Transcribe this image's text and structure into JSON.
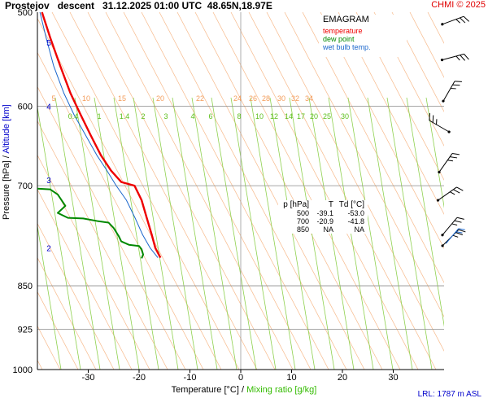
{
  "header": {
    "title": "Prostejov   descent   31.12.2025 01:00 UTC  48.65N,18.97E",
    "credit": "CHMI © 2025",
    "lrl": "LRL: 1787 m ASL"
  },
  "legend": {
    "title": "EMAGRAM",
    "items": [
      {
        "label": "temperature",
        "color": "#ee0000"
      },
      {
        "label": "dew point",
        "color": "#008800"
      },
      {
        "label": "wet bulb temp.",
        "color": "#1a66cc"
      }
    ]
  },
  "table": {
    "headers": [
      "p [hPa]",
      "T",
      "Td [°C]"
    ],
    "rows": [
      [
        "500",
        "-39.1",
        "-53.0"
      ],
      [
        "700",
        "-20.9",
        "-41.8"
      ],
      [
        "850",
        "NA",
        "NA"
      ]
    ]
  },
  "axes": {
    "xlabel_prefix": "Temperature [°C]  /  ",
    "xlabel_mix": "Mixing ratio [g/kg]",
    "ylabel_prefix": "Pressure [hPa]  /  ",
    "ylabel_alt": "Altitude [km]"
  },
  "chart_data": {
    "type": "line",
    "xlim": [
      -40,
      40
    ],
    "ylim_hpa": [
      1000,
      500
    ],
    "x_scale": "linear",
    "y_scale": "log-pressure",
    "x_ticks": [
      -30,
      -20,
      -10,
      0,
      10,
      20,
      30
    ],
    "y_ticks": [
      500,
      600,
      700,
      850,
      925,
      1000
    ],
    "altitude_ticks_km": [
      {
        "label": "5",
        "p": 530
      },
      {
        "label": "4",
        "p": 600
      },
      {
        "label": "3",
        "p": 692
      },
      {
        "label": "2",
        "p": 790
      }
    ],
    "theta_labels": [
      "5",
      "10",
      "15",
      "20",
      "22",
      "24",
      "26",
      "28",
      "30",
      "32",
      "34"
    ],
    "mixing_ratio_labels": [
      "0.4",
      "1",
      "1.4",
      "2",
      "3",
      "4",
      "6",
      "8",
      "10",
      "12",
      "14",
      "17",
      "20",
      "25",
      "30"
    ],
    "series": [
      {
        "name": "temperature",
        "color": "#ee0000",
        "points": [
          [
            -39.1,
            500
          ],
          [
            -37.5,
            525
          ],
          [
            -35.5,
            555
          ],
          [
            -33.5,
            585
          ],
          [
            -31.5,
            610
          ],
          [
            -29.5,
            635
          ],
          [
            -27.5,
            660
          ],
          [
            -25.5,
            680
          ],
          [
            -23.5,
            695
          ],
          [
            -20.9,
            700
          ],
          [
            -19.5,
            720
          ],
          [
            -18.5,
            745
          ],
          [
            -17.5,
            770
          ],
          [
            -16.8,
            790
          ],
          [
            -15.8,
            805
          ]
        ]
      },
      {
        "name": "wet bulb temp.",
        "color": "#1a66cc",
        "points": [
          [
            -39.5,
            500
          ],
          [
            -38.3,
            525
          ],
          [
            -36.8,
            555
          ],
          [
            -34.8,
            585
          ],
          [
            -32.8,
            610
          ],
          [
            -30.5,
            635
          ],
          [
            -28.3,
            660
          ],
          [
            -26.3,
            680
          ],
          [
            -24.5,
            700
          ],
          [
            -22.5,
            720
          ],
          [
            -20.8,
            745
          ],
          [
            -19.3,
            770
          ],
          [
            -17.8,
            790
          ],
          [
            -16.3,
            805
          ]
        ]
      },
      {
        "name": "dew point",
        "color": "#008800",
        "points": [
          [
            -40,
            704
          ],
          [
            -37.5,
            705
          ],
          [
            -36,
            712
          ],
          [
            -34.5,
            728
          ],
          [
            -36,
            738
          ],
          [
            -34,
            745
          ],
          [
            -31,
            746
          ],
          [
            -28,
            750
          ],
          [
            -26,
            752
          ],
          [
            -25,
            760
          ],
          [
            -24,
            772
          ],
          [
            -23.5,
            780
          ],
          [
            -22,
            785
          ],
          [
            -20,
            787
          ],
          [
            -19.5,
            792
          ],
          [
            -19.2,
            800
          ],
          [
            -19.5,
            806
          ]
        ]
      }
    ]
  }
}
